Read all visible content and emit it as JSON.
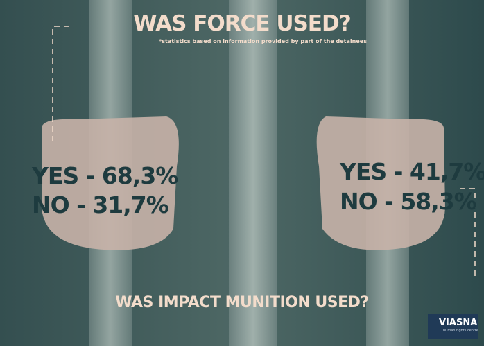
{
  "header": {
    "title": "WAS FORCE USED?",
    "note": "*statistics based on information provided by part of the detainees"
  },
  "left_panel": {
    "yes": "YES - 68,3%",
    "no": "NO - 31,7%"
  },
  "right_panel": {
    "yes": "YES - 41,7%",
    "no": "NO - 58,3%"
  },
  "footer": {
    "question": "WAS IMPACT MUNITION USED?",
    "logo": "VIASNA",
    "logo_sub": "human rights centre"
  }
}
